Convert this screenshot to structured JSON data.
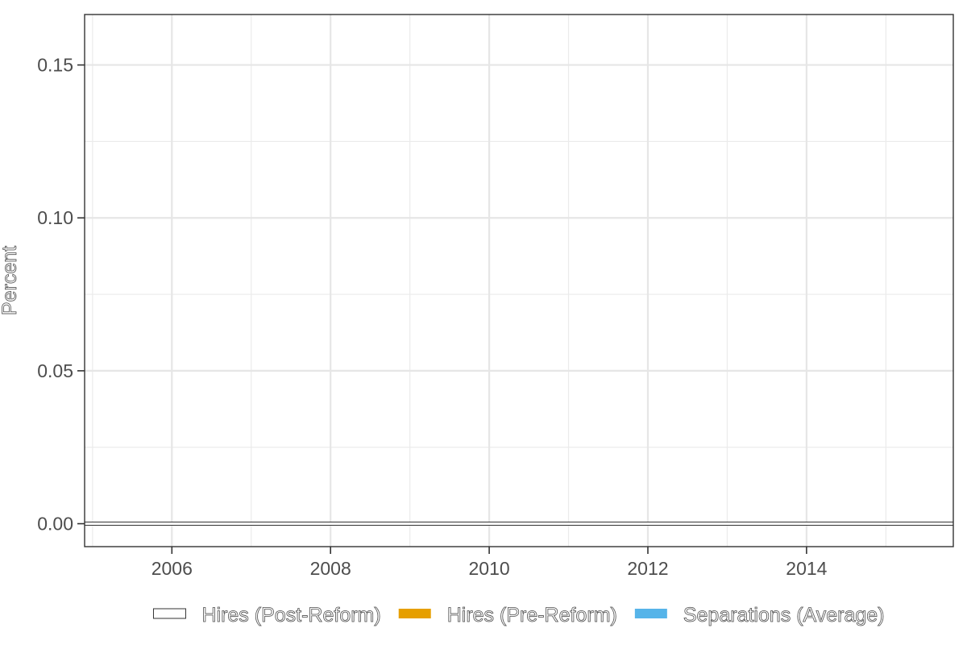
{
  "chart_data": {
    "type": "line",
    "title": "",
    "xlabel": "",
    "ylabel": "Percent",
    "xlim": [
      2004.9,
      2015.85
    ],
    "ylim": [
      -0.0075,
      0.1665
    ],
    "x_ticks": [
      2006,
      2008,
      2010,
      2012,
      2014
    ],
    "x_tick_labels": [
      "2006",
      "2008",
      "2010",
      "2012",
      "2014"
    ],
    "y_ticks": [
      0.0,
      0.05,
      0.1,
      0.15
    ],
    "y_tick_labels": [
      "0.00",
      "0.05",
      "0.10",
      "0.15"
    ],
    "grid": true,
    "legend_position": "bottom",
    "series": [
      {
        "name": "Hires (Post-Reform)",
        "color": "#ffffff",
        "outline": "#333333",
        "x": [
          2004.9,
          2015.85
        ],
        "y": [
          0.0,
          0.0
        ]
      },
      {
        "name": "Hires (Pre-Reform)",
        "color": "#E69F00",
        "x": [],
        "y": []
      },
      {
        "name": "Separations (Average)",
        "color": "#56B4E9",
        "x": [],
        "y": []
      }
    ]
  }
}
